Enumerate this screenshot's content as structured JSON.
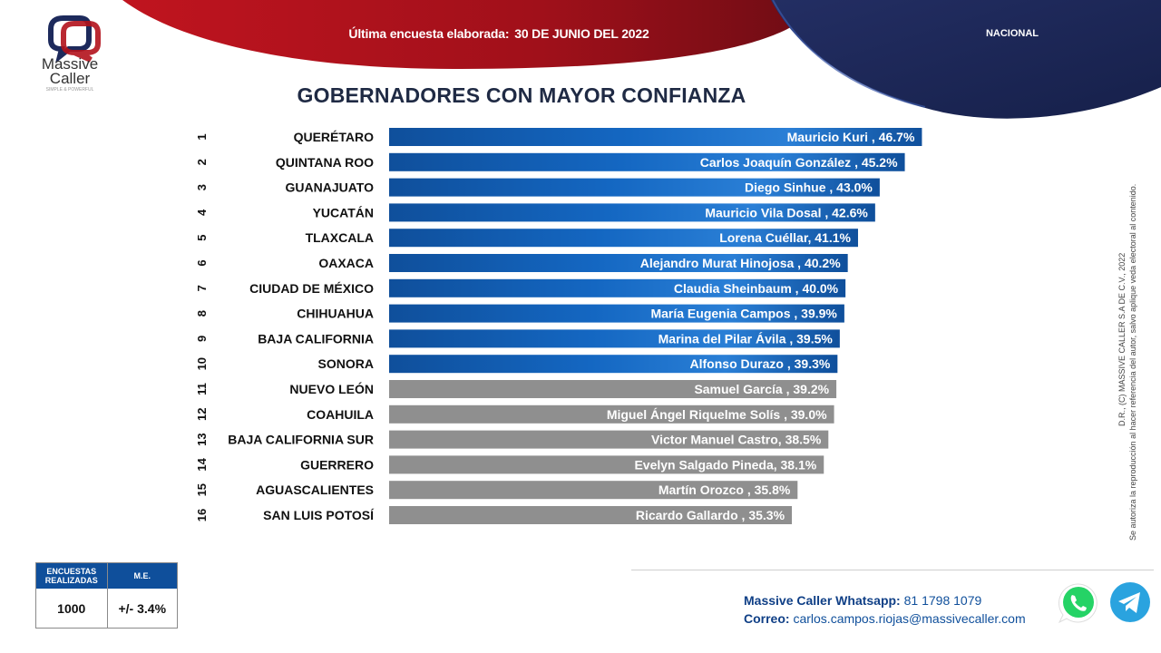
{
  "brand": {
    "name_line1": "Massive",
    "name_line2": "Caller",
    "tagline": "SIMPLE & POWERFUL"
  },
  "header": {
    "survey_label": "Última encuesta elaborada:",
    "survey_date": "30 DE JUNIO DEL 2022",
    "scope": "NACIONAL"
  },
  "title": "GOBERNADORES CON MAYOR CONFIANZA",
  "colors": {
    "red": "#b3121c",
    "navy": "#1b2a5e",
    "bar_blue": "#1060b8",
    "bar_gray": "#8f8f8f"
  },
  "chart_data": {
    "type": "bar",
    "orientation": "horizontal",
    "ranks": [
      "1",
      "2",
      "3",
      "4",
      "5",
      "6",
      "7",
      "8",
      "9",
      "10",
      "11",
      "12",
      "13",
      "14",
      "15",
      "16"
    ],
    "categories": [
      "QUERÉTARO",
      "QUINTANA ROO",
      "GUANAJUATO",
      "YUCATÁN",
      "TLAXCALA",
      "OAXACA",
      "CIUDAD DE MÉXICO",
      "CHIHUAHUA",
      "BAJA CALIFORNIA",
      "SONORA",
      "NUEVO LEÓN",
      "COAHUILA",
      "BAJA CALIFORNIA SUR",
      "GUERRERO",
      "AGUASCALIENTES",
      "SAN LUIS POTOSÍ"
    ],
    "values": [
      46.7,
      45.2,
      43.0,
      42.6,
      41.1,
      40.2,
      40.0,
      39.9,
      39.5,
      39.3,
      39.2,
      39.0,
      38.5,
      38.1,
      35.8,
      35.3
    ],
    "bar_labels": [
      "Mauricio Kuri , 46.7%",
      "Carlos Joaquín González , 45.2%",
      "Diego Sinhue , 43.0%",
      "Mauricio Vila Dosal , 42.6%",
      "Lorena Cuéllar, 41.1%",
      "Alejandro Murat Hinojosa , 40.2%",
      "Claudia Sheinbaum , 40.0%",
      "María Eugenia Campos , 39.9%",
      "Marina del Pilar Ávila , 39.5%",
      "Alfonso Durazo , 39.3%",
      "Samuel García , 39.2%",
      "Miguel Ángel Riquelme Solís , 39.0%",
      "Victor Manuel Castro, 38.5%",
      "Evelyn Salgado Pineda, 38.1%",
      "Martín Orozco , 35.8%",
      "Ricardo Gallardo , 35.3%"
    ],
    "highlight_count": 10,
    "xlim": [
      0,
      47.7
    ]
  },
  "survey_table": {
    "header_col1": "ENCUESTAS REALIZADAS",
    "header_col2": "M.E.",
    "value_col1": "1000",
    "value_col2": "+/- 3.4%"
  },
  "contact": {
    "whatsapp_label": "Massive Caller Whatsapp:",
    "whatsapp_number": "81 1798 1079",
    "email_label": "Correo:",
    "email": "carlos.campos.riojas@massivecaller.com"
  },
  "side_note": {
    "line1": "D.R., (C) MASSIVE CALLER S.A DE C.V., 2022",
    "line2": "Se autoriza la reproducción al hacer referencia del autor, salvo aplique veda electoral al contenido."
  },
  "icons": [
    "whatsapp-icon",
    "telegram-icon"
  ]
}
